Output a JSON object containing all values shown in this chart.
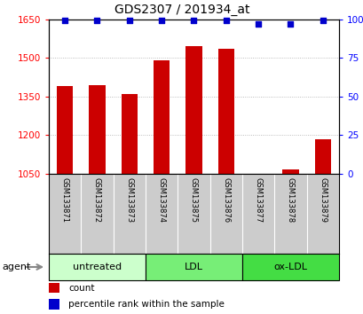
{
  "title": "GDS2307 / 201934_at",
  "samples": [
    "GSM133871",
    "GSM133872",
    "GSM133873",
    "GSM133874",
    "GSM133875",
    "GSM133876",
    "GSM133877",
    "GSM133878",
    "GSM133879"
  ],
  "counts": [
    1390,
    1395,
    1360,
    1490,
    1545,
    1535,
    1048,
    1068,
    1185
  ],
  "percentiles": [
    99,
    99,
    99,
    99,
    99,
    99,
    97,
    97,
    99
  ],
  "bar_color": "#cc0000",
  "dot_color": "#0000cc",
  "ylim_left": [
    1050,
    1650
  ],
  "ylim_right": [
    0,
    100
  ],
  "yticks_left": [
    1050,
    1200,
    1350,
    1500,
    1650
  ],
  "yticks_right": [
    0,
    25,
    50,
    75,
    100
  ],
  "groups": [
    {
      "label": "untreated",
      "start": 0,
      "end": 3,
      "color": "#ccffcc"
    },
    {
      "label": "LDL",
      "start": 3,
      "end": 6,
      "color": "#77ee77"
    },
    {
      "label": "ox-LDL",
      "start": 6,
      "end": 9,
      "color": "#44dd44"
    }
  ],
  "agent_label": "agent",
  "legend_count_label": "count",
  "legend_pct_label": "percentile rank within the sample",
  "grid_color": "#aaaaaa",
  "bg_color": "#ffffff",
  "sample_label_bg": "#cccccc",
  "bar_width": 0.5,
  "fig_width": 4.1,
  "fig_height": 3.54,
  "dpi": 100
}
